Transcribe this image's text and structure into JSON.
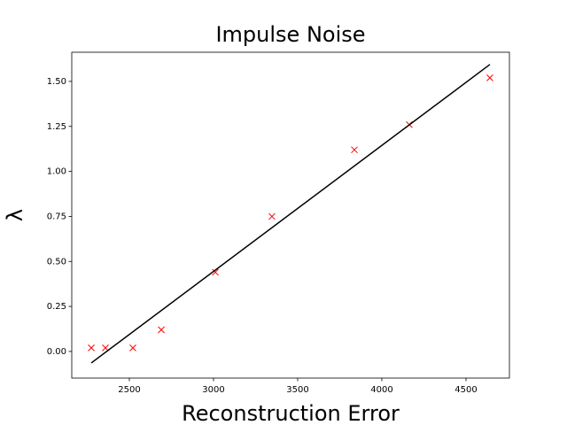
{
  "chart_data": {
    "type": "scatter",
    "title": "Impulse Noise",
    "x_label": "Reconstruction Error",
    "y_label": "λ",
    "series": [
      {
        "type": "scatter",
        "marker": "x",
        "color": "#ff0000",
        "x": [
          2274,
          2358,
          2521,
          2690,
          3011,
          3347,
          3837,
          4163,
          4642
        ],
        "values": [
          0.02,
          0.02,
          0.02,
          0.12,
          0.44,
          0.75,
          1.12,
          1.26,
          1.52
        ]
      },
      {
        "type": "line",
        "color": "#000000",
        "x": [
          2274,
          4642
        ],
        "values": [
          -0.064,
          1.594
        ]
      }
    ],
    "xlim": [
      2158,
      4758
    ],
    "xticks": [
      2500,
      3000,
      3500,
      4000,
      4500
    ],
    "ylim": [
      -0.148,
      1.662
    ],
    "yticks": [
      {
        "value": 0,
        "label": "0.00"
      },
      {
        "value": 0.25,
        "label": "0.25"
      },
      {
        "value": 0.5,
        "label": "0.50"
      },
      {
        "value": 0.75,
        "label": "0.75"
      },
      {
        "value": 1,
        "label": "1.00"
      },
      {
        "value": 1.25,
        "label": "1.25"
      },
      {
        "value": 1.5,
        "label": "1.50"
      }
    ],
    "grid": false
  }
}
